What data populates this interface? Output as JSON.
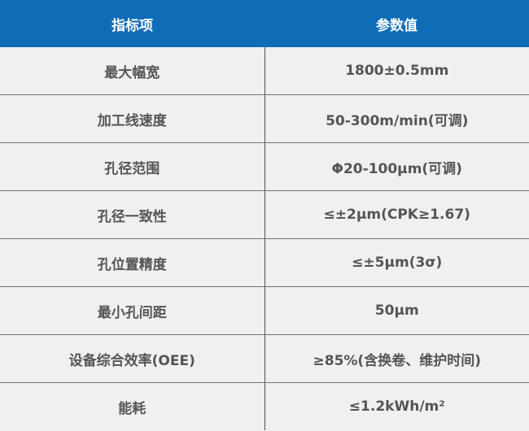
{
  "header": {
    "col1": "指标项",
    "col2": "参数值",
    "color": "#0f6db8"
  },
  "rows": [
    {
      "item": "最大幅宽",
      "value": "1800±0.5mm"
    },
    {
      "item": "加工线速度",
      "value": "50-300m/min(可调)"
    },
    {
      "item": "孔径范围",
      "value": "Φ20-100μm(可调)"
    },
    {
      "item": "孔径一致性",
      "value": "≤±2μm(CPK≥1.67)"
    },
    {
      "item": "孔位置精度",
      "value": "≤±5μm(3σ)"
    },
    {
      "item": "最小孔间距",
      "value": "50μm"
    },
    {
      "item": "设备综合效率(OEE)",
      "value": "≥85%(含换卷、维护时间)"
    },
    {
      "item": "能耗",
      "value": "≤1.2kWh/m²"
    }
  ]
}
